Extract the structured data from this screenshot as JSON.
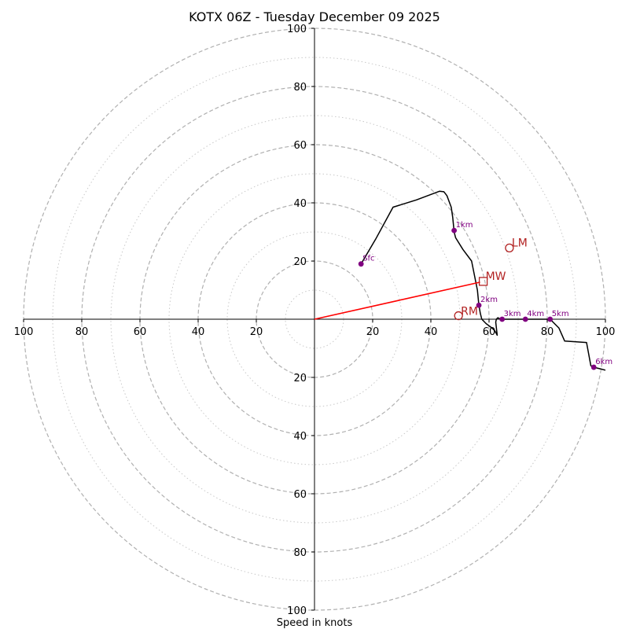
{
  "chart_data": {
    "type": "hodograph",
    "title": "KOTX 06Z - Tuesday December 09 2025",
    "xlabel": "Speed in knots",
    "xlim": [
      -100,
      100
    ],
    "ylim": [
      -100,
      100
    ],
    "major_rings": [
      20,
      40,
      60,
      80,
      100
    ],
    "minor_rings": [
      10,
      30,
      50,
      70,
      90
    ],
    "tick_labels": {
      "x_left": [
        "100",
        "80",
        "60",
        "40",
        "20"
      ],
      "x_right": [
        "20",
        "40",
        "60",
        "80",
        "100"
      ],
      "y_up": [
        "20",
        "40",
        "60",
        "80",
        "100"
      ],
      "y_down": [
        "20",
        "40",
        "60",
        "80",
        "100"
      ]
    },
    "trace": [
      [
        16,
        19
      ],
      [
        21,
        27.5
      ],
      [
        27,
        38.5
      ],
      [
        35,
        41
      ],
      [
        43,
        44
      ],
      [
        44.5,
        43.8
      ],
      [
        45.5,
        42.5
      ],
      [
        47,
        38.5
      ],
      [
        47.5,
        35
      ],
      [
        48,
        30
      ],
      [
        48.5,
        28
      ],
      [
        51,
        24
      ],
      [
        54,
        20
      ],
      [
        55,
        15
      ],
      [
        56,
        10
      ],
      [
        56.5,
        5
      ],
      [
        57,
        2
      ],
      [
        57.5,
        0
      ],
      [
        59,
        -1.5
      ],
      [
        61,
        -3
      ],
      [
        62,
        -4
      ],
      [
        62.8,
        -5.5
      ],
      [
        62.3,
        -1
      ],
      [
        62.5,
        0
      ],
      [
        63,
        0.5
      ],
      [
        64,
        0
      ],
      [
        72,
        0
      ],
      [
        81,
        0
      ],
      [
        84,
        -3
      ],
      [
        86,
        -7.5
      ],
      [
        93.5,
        -8
      ],
      [
        95,
        -16
      ],
      [
        96,
        -16.5
      ],
      [
        98,
        -17
      ],
      [
        100,
        -17.5
      ]
    ],
    "height_markers": [
      {
        "label": "Sfc",
        "u": 16,
        "v": 19
      },
      {
        "label": "1km",
        "u": 48,
        "v": 30.5
      },
      {
        "label": "2km",
        "u": 56.5,
        "v": 4.8
      },
      {
        "label": "3km",
        "u": 64.5,
        "v": 0
      },
      {
        "label": "4km",
        "u": 72.5,
        "v": 0
      },
      {
        "label": "5km",
        "u": 81,
        "v": 0
      },
      {
        "label": "6km",
        "u": 96,
        "v": -16.5
      }
    ],
    "storm_motion": {
      "rm": {
        "label": "RM",
        "u": 49.5,
        "v": 1.2
      },
      "lm": {
        "label": "LM",
        "u": 67,
        "v": 24.5
      },
      "mw": {
        "label": "MW",
        "u": 58,
        "v": 13
      }
    },
    "colors": {
      "trace": "#000000",
      "markers": "#800080",
      "storm": "#b22222",
      "mean_wind_vector": "#ff0000",
      "major_ring": "#b0b0b0",
      "minor_ring": "#c8c8c8"
    }
  }
}
